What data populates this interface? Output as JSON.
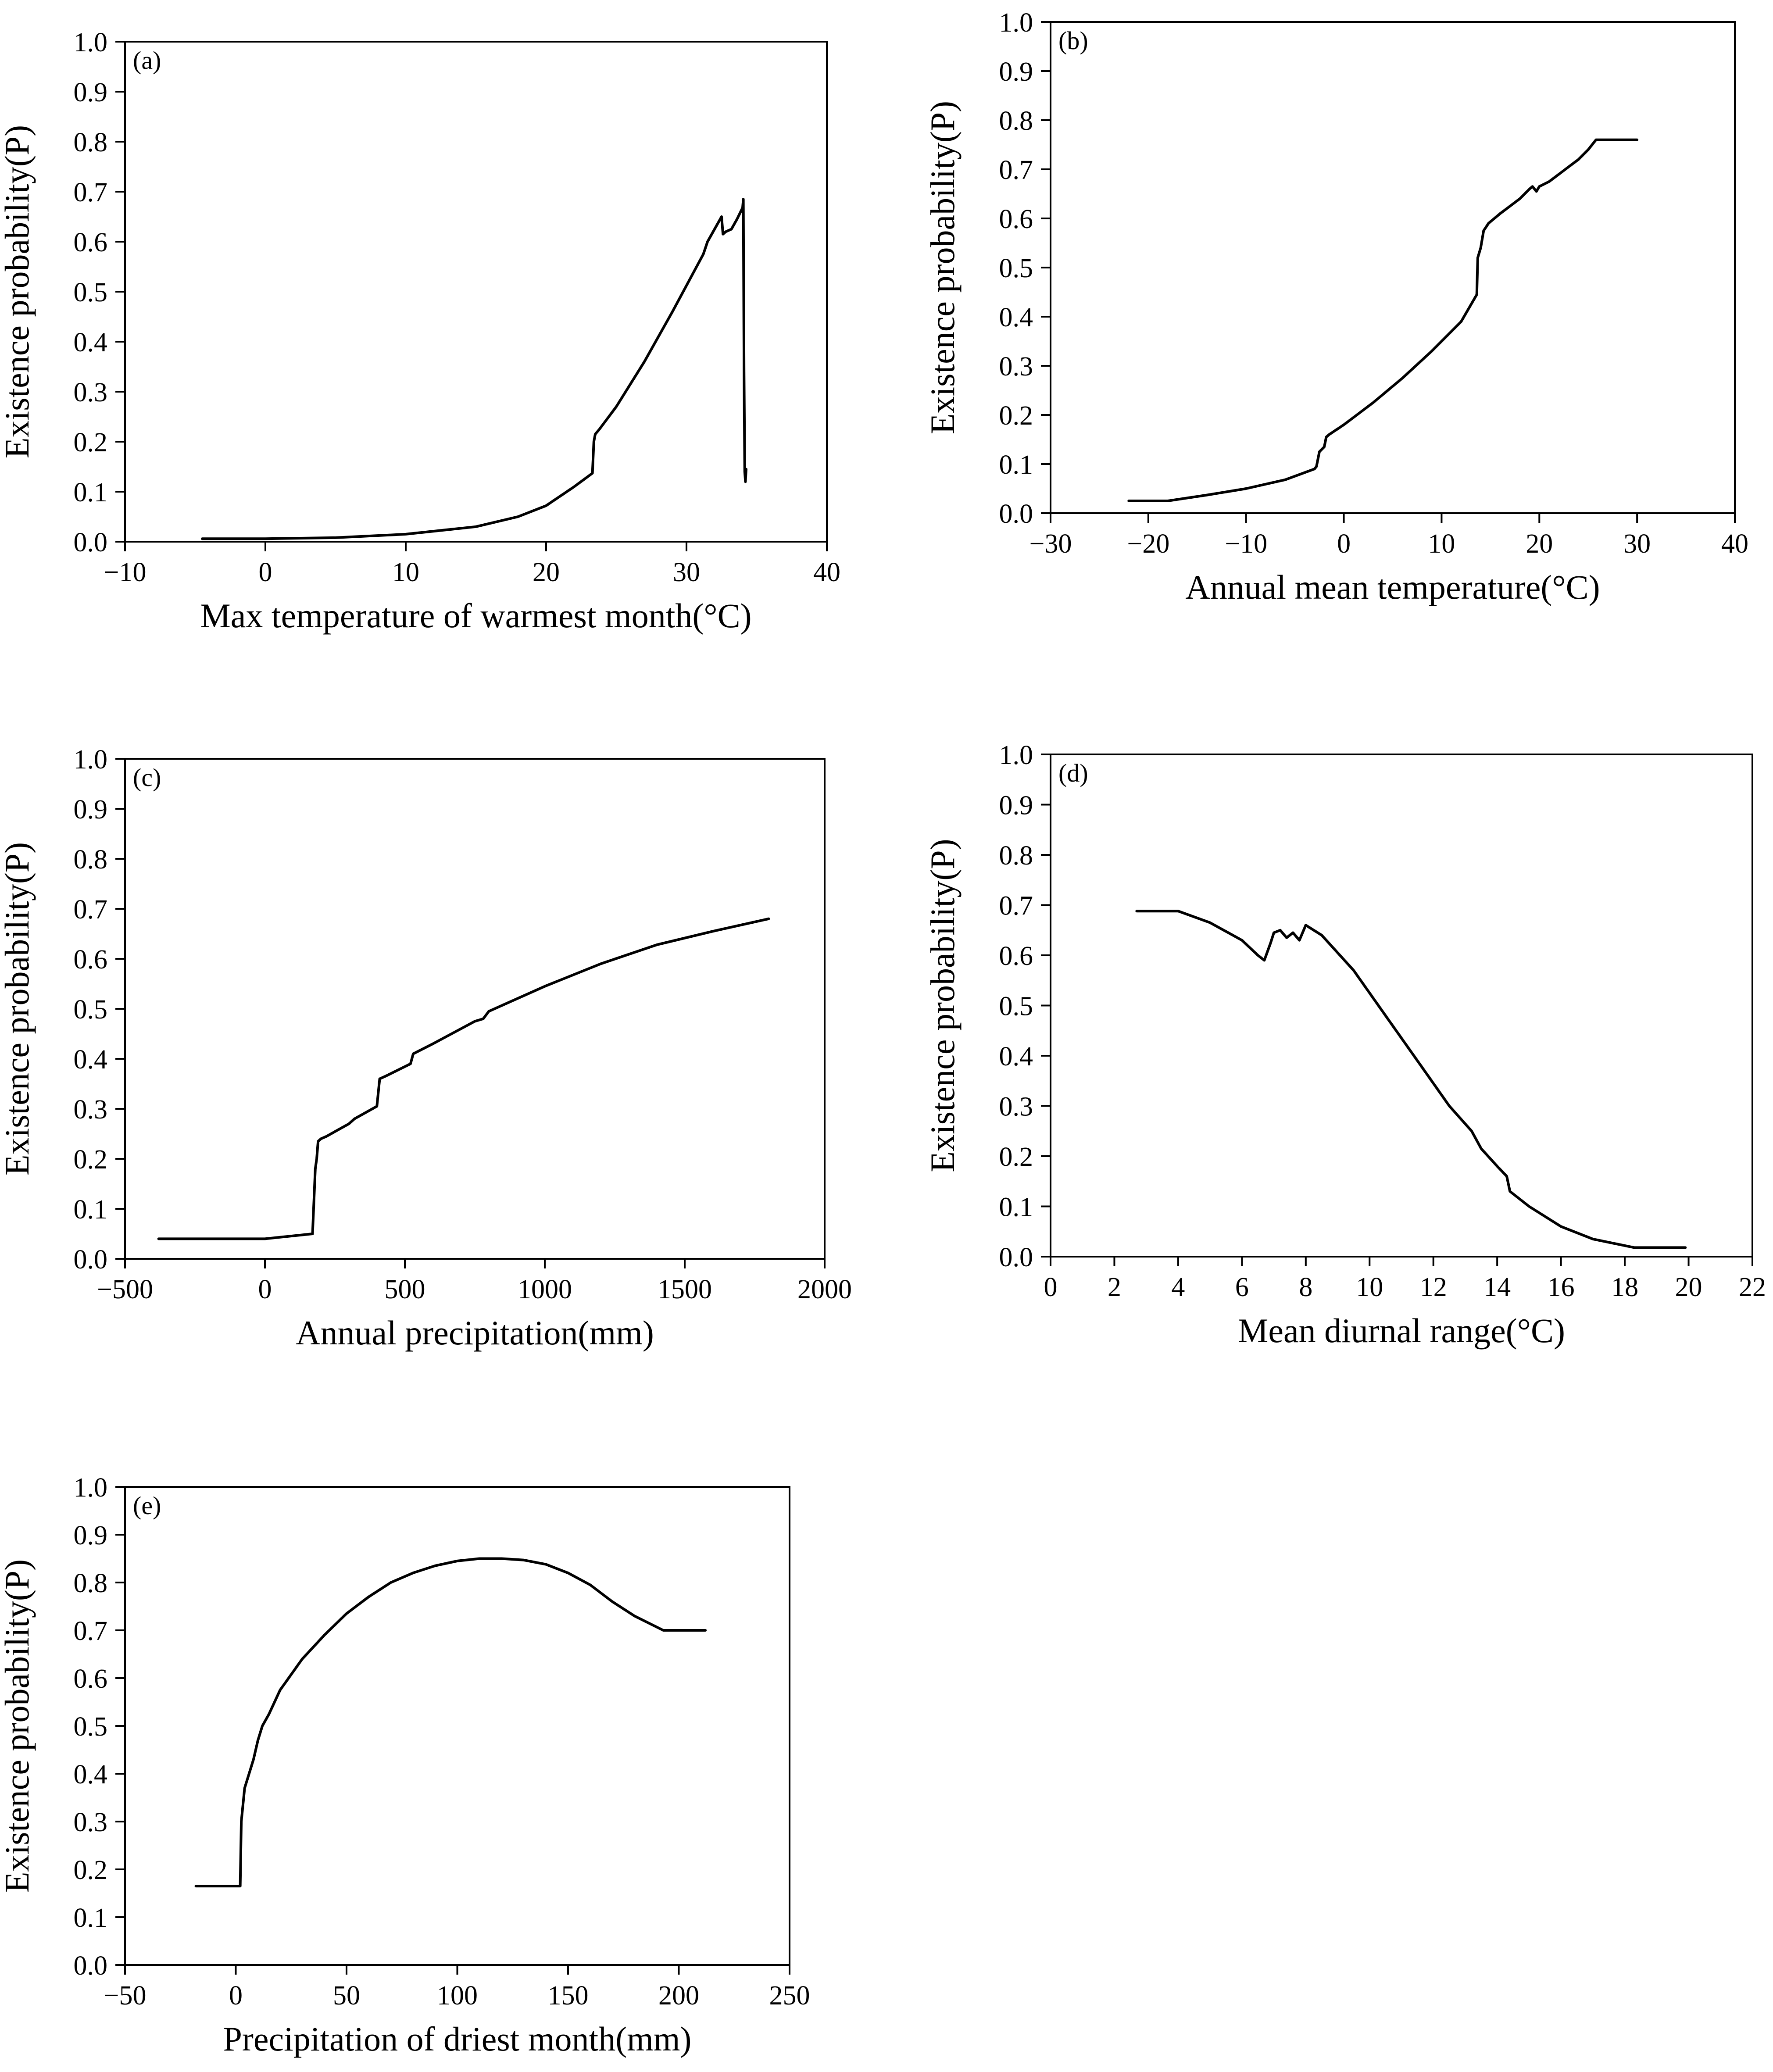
{
  "figure": {
    "colors": {
      "line": "#000000",
      "axis": "#000000",
      "background": "#ffffff"
    }
  },
  "chart_data": [
    {
      "id": "a",
      "type": "line",
      "tag": "(a)",
      "title": "",
      "xlabel": "Max temperature of warmest month(°C)",
      "ylabel": "Existence probability(P)",
      "xlim": [
        -10,
        40
      ],
      "ylim": [
        0,
        1
      ],
      "xticks": [
        -10,
        0,
        10,
        20,
        30,
        40
      ],
      "xtick_labels": [
        "−10",
        "0",
        "10",
        "20",
        "30",
        "40"
      ],
      "yticks": [
        0,
        0.1,
        0.2,
        0.3,
        0.4,
        0.5,
        0.6,
        0.7,
        0.8,
        0.9,
        1.0
      ],
      "ytick_labels": [
        "0.0",
        "0.1",
        "0.2",
        "0.3",
        "0.4",
        "0.5",
        "0.6",
        "0.7",
        "0.8",
        "0.9",
        "1.0"
      ],
      "grid": false,
      "series": [
        {
          "name": "Max temperature of warmest month",
          "x": [
            -4.5,
            0,
            5,
            10,
            15,
            18,
            20,
            22,
            23.3,
            23.4,
            23.5,
            23.8,
            25,
            27,
            29,
            31.2,
            31.5,
            32,
            32.5,
            32.6,
            32.8,
            33.2,
            33.6,
            34.0,
            34.05,
            34.1,
            34.15,
            34.2,
            34.25
          ],
          "y": [
            0.006,
            0.006,
            0.008,
            0.015,
            0.03,
            0.05,
            0.072,
            0.11,
            0.137,
            0.2,
            0.215,
            0.225,
            0.27,
            0.36,
            0.46,
            0.575,
            0.6,
            0.625,
            0.65,
            0.615,
            0.62,
            0.625,
            0.645,
            0.668,
            0.685,
            0.34,
            0.14,
            0.12,
            0.145
          ]
        }
      ]
    },
    {
      "id": "b",
      "type": "line",
      "tag": "(b)",
      "title": "",
      "xlabel": "Annual mean temperature(°C)",
      "ylabel": "Existence probability(P)",
      "xlim": [
        -30,
        40
      ],
      "ylim": [
        0,
        1
      ],
      "xticks": [
        -30,
        -20,
        -10,
        0,
        10,
        20,
        30,
        40
      ],
      "xtick_labels": [
        "−30",
        "−20",
        "−10",
        "0",
        "10",
        "20",
        "30",
        "40"
      ],
      "yticks": [
        0,
        0.1,
        0.2,
        0.3,
        0.4,
        0.5,
        0.6,
        0.7,
        0.8,
        0.9,
        1.0
      ],
      "ytick_labels": [
        "0.0",
        "0.1",
        "0.2",
        "0.3",
        "0.4",
        "0.5",
        "0.6",
        "0.7",
        "0.8",
        "0.9",
        "1.0"
      ],
      "grid": false,
      "series": [
        {
          "name": "Annual mean temperature",
          "x": [
            -22,
            -18,
            -14,
            -10,
            -6,
            -3,
            -2.8,
            -2.5,
            -2,
            -1.8,
            -1.5,
            0,
            3,
            6,
            9,
            12,
            13.6,
            13.7,
            14,
            14.3,
            14.8,
            16,
            17,
            18,
            18.5,
            19,
            19.3,
            19.7,
            20,
            21,
            22,
            23,
            24,
            25,
            25.8,
            30
          ],
          "y": [
            0.025,
            0.025,
            0.037,
            0.05,
            0.068,
            0.09,
            0.095,
            0.125,
            0.135,
            0.155,
            0.16,
            0.18,
            0.225,
            0.275,
            0.33,
            0.39,
            0.445,
            0.52,
            0.54,
            0.575,
            0.59,
            0.61,
            0.625,
            0.64,
            0.65,
            0.66,
            0.665,
            0.655,
            0.665,
            0.675,
            0.69,
            0.705,
            0.72,
            0.74,
            0.76,
            0.76
          ]
        }
      ]
    },
    {
      "id": "c",
      "type": "line",
      "tag": "(c)",
      "title": "",
      "xlabel": "Annual precipitation(mm)",
      "ylabel": "Existence probability(P)",
      "xlim": [
        -500,
        2000
      ],
      "ylim": [
        0,
        1
      ],
      "xticks": [
        -500,
        0,
        500,
        1000,
        1500,
        2000
      ],
      "xtick_labels": [
        "−500",
        "0",
        "500",
        "1000",
        "1500",
        "2000"
      ],
      "yticks": [
        0,
        0.1,
        0.2,
        0.3,
        0.4,
        0.5,
        0.6,
        0.7,
        0.8,
        0.9,
        1.0
      ],
      "ytick_labels": [
        "0.0",
        "0.1",
        "0.2",
        "0.3",
        "0.4",
        "0.5",
        "0.6",
        "0.7",
        "0.8",
        "0.9",
        "1.0"
      ],
      "grid": false,
      "series": [
        {
          "name": "Annual precipitation",
          "x": [
            -380,
            -200,
            0,
            170,
            180,
            185,
            190,
            200,
            220,
            300,
            320,
            400,
            410,
            430,
            520,
            530,
            600,
            700,
            750,
            780,
            800,
            1000,
            1200,
            1400,
            1600,
            1800
          ],
          "y": [
            0.04,
            0.04,
            0.04,
            0.05,
            0.18,
            0.2,
            0.235,
            0.24,
            0.245,
            0.27,
            0.28,
            0.305,
            0.36,
            0.365,
            0.39,
            0.41,
            0.43,
            0.46,
            0.475,
            0.48,
            0.495,
            0.545,
            0.59,
            0.628,
            0.655,
            0.68
          ]
        }
      ]
    },
    {
      "id": "d",
      "type": "line",
      "tag": "(d)",
      "title": "",
      "xlabel": "Mean diurnal range(°C)",
      "ylabel": "Existence probability(P)",
      "xlim": [
        0,
        22
      ],
      "ylim": [
        0,
        1
      ],
      "xticks": [
        0,
        2,
        4,
        6,
        8,
        10,
        12,
        14,
        16,
        18,
        20,
        22
      ],
      "xtick_labels": [
        "0",
        "2",
        "4",
        "6",
        "8",
        "10",
        "12",
        "14",
        "16",
        "18",
        "20",
        "22"
      ],
      "yticks": [
        0,
        0.1,
        0.2,
        0.3,
        0.4,
        0.5,
        0.6,
        0.7,
        0.8,
        0.9,
        1.0
      ],
      "ytick_labels": [
        "0.0",
        "0.1",
        "0.2",
        "0.3",
        "0.4",
        "0.5",
        "0.6",
        "0.7",
        "0.8",
        "0.9",
        "1.0"
      ],
      "grid": false,
      "series": [
        {
          "name": "Mean diurnal range",
          "x": [
            2.7,
            4.0,
            5.0,
            6.0,
            6.5,
            6.7,
            6.9,
            7.0,
            7.2,
            7.4,
            7.6,
            7.8,
            8.0,
            8.5,
            9.5,
            10.5,
            11.5,
            12.5,
            13.2,
            13.5,
            14.0,
            14.3,
            14.4,
            15.0,
            16.0,
            17.0,
            18.3,
            19.9
          ],
          "y": [
            0.688,
            0.688,
            0.665,
            0.63,
            0.6,
            0.59,
            0.625,
            0.645,
            0.65,
            0.635,
            0.645,
            0.63,
            0.66,
            0.64,
            0.57,
            0.48,
            0.39,
            0.3,
            0.25,
            0.215,
            0.18,
            0.16,
            0.13,
            0.1,
            0.06,
            0.035,
            0.018,
            0.018
          ]
        }
      ]
    },
    {
      "id": "e",
      "type": "line",
      "tag": "(e)",
      "title": "",
      "xlabel": "Precipitation of driest month(mm)",
      "ylabel": "Existence probability(P)",
      "xlim": [
        -50,
        250
      ],
      "ylim": [
        0,
        1
      ],
      "xticks": [
        -50,
        0,
        50,
        100,
        150,
        200,
        250
      ],
      "xtick_labels": [
        "−50",
        "0",
        "50",
        "100",
        "150",
        "200",
        "250"
      ],
      "yticks": [
        0,
        0.1,
        0.2,
        0.3,
        0.4,
        0.5,
        0.6,
        0.7,
        0.8,
        0.9,
        1.0
      ],
      "ytick_labels": [
        "0.0",
        "0.1",
        "0.2",
        "0.3",
        "0.4",
        "0.5",
        "0.6",
        "0.7",
        "0.8",
        "0.9",
        "1.0"
      ],
      "grid": false,
      "series": [
        {
          "name": "Precipitation of driest month",
          "x": [
            -18,
            0,
            2,
            2.5,
            4,
            6,
            8,
            10,
            12,
            15,
            20,
            30,
            40,
            50,
            60,
            70,
            80,
            90,
            100,
            110,
            120,
            130,
            140,
            150,
            160,
            170,
            180,
            193,
            212
          ],
          "y": [
            0.165,
            0.165,
            0.165,
            0.3,
            0.37,
            0.4,
            0.43,
            0.47,
            0.5,
            0.525,
            0.575,
            0.64,
            0.69,
            0.735,
            0.77,
            0.8,
            0.82,
            0.835,
            0.845,
            0.85,
            0.85,
            0.847,
            0.838,
            0.82,
            0.795,
            0.76,
            0.73,
            0.7,
            0.7
          ]
        }
      ]
    }
  ]
}
